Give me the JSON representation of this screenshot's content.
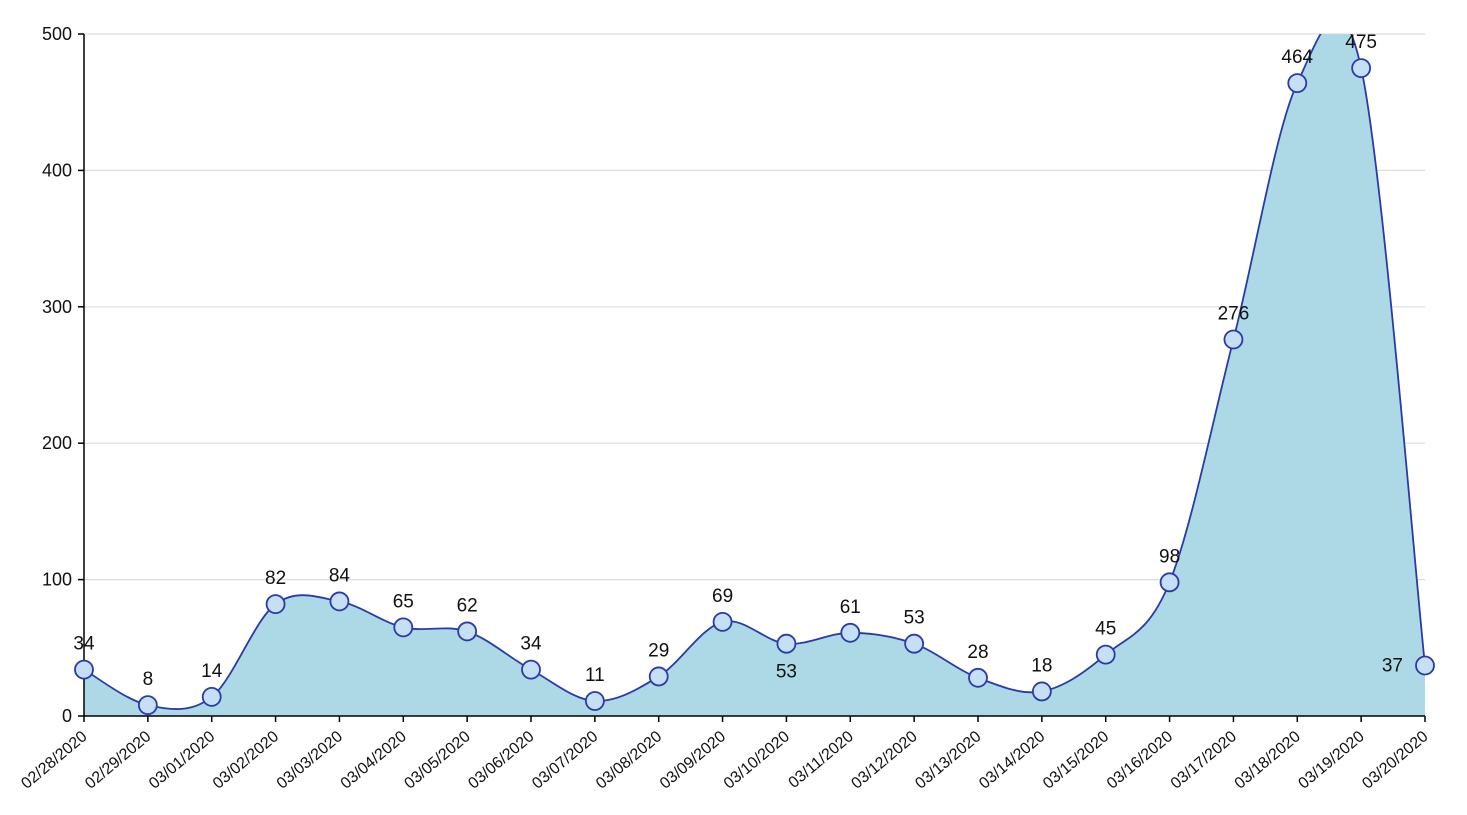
{
  "chart_data": {
    "type": "area",
    "title": "",
    "xlabel": "",
    "ylabel": "",
    "ylim": [
      0,
      500
    ],
    "yticks": [
      "0",
      "100",
      "200",
      "300",
      "400",
      "500"
    ],
    "grid": "horizontal",
    "legend": "none",
    "categories": [
      "02/28/2020",
      "02/29/2020",
      "03/01/2020",
      "03/02/2020",
      "03/03/2020",
      "03/04/2020",
      "03/05/2020",
      "03/06/2020",
      "03/07/2020",
      "03/08/2020",
      "03/09/2020",
      "03/10/2020",
      "03/11/2020",
      "03/12/2020",
      "03/13/2020",
      "03/14/2020",
      "03/15/2020",
      "03/16/2020",
      "03/17/2020",
      "03/18/2020",
      "03/19/2020",
      "03/20/2020"
    ],
    "series": [
      {
        "values": [
          34,
          8,
          14,
          82,
          84,
          65,
          62,
          34,
          11,
          29,
          69,
          53,
          61,
          53,
          28,
          18,
          45,
          98,
          276,
          464,
          475,
          37
        ],
        "data_labels": [
          "34",
          "8",
          "14",
          "82",
          "84",
          "65",
          "62",
          "34",
          "11",
          "29",
          "69",
          "53",
          "61",
          "53",
          "28",
          "18",
          "45",
          "98",
          "276",
          "464",
          "475",
          "37"
        ]
      }
    ],
    "colors": {
      "fill": "#add8e6",
      "line": "#2a3aa8",
      "marker_fill": "#c5dff5",
      "grid": "#dddddd",
      "axis": "#000000"
    }
  }
}
